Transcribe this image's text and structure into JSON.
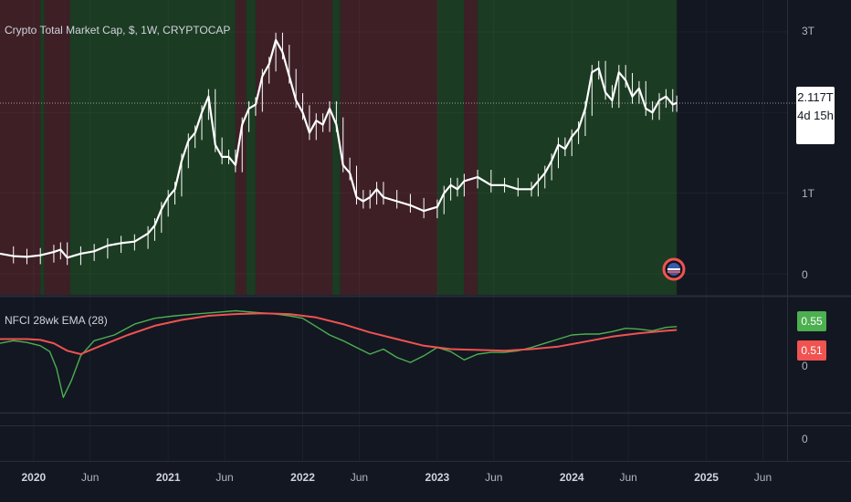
{
  "header": {
    "symbol_title": "Crypto Total Market Cap, $, 1W, CRYPTOCAP",
    "indicator_title": "NFCI 28wk EMA (28)"
  },
  "price_badge": {
    "value": "2.117T",
    "countdown": "4d 15h"
  },
  "indicator_badges": {
    "nfci": "0.55",
    "ema": "0.51"
  },
  "colors": {
    "background": "#131722",
    "green_regime": "#1b3b22",
    "red_regime": "#3e1f26",
    "nfci_line": "#4caf50",
    "ema_line": "#f05350",
    "candles": "#ffffff"
  },
  "chart_data": [
    {
      "type": "line",
      "title": "Crypto Total Market Cap, $, 1W, CRYPTOCAP",
      "ylabel": "",
      "ytick_labels": [
        "3T",
        "1T",
        "0"
      ],
      "yticks": [
        3,
        1,
        0
      ],
      "ylim": [
        -0.3,
        3.3
      ],
      "unit": "T",
      "last_value": 2.117,
      "x": [
        2019.75,
        2019.85,
        2019.95,
        2020.05,
        2020.15,
        2020.2,
        2020.25,
        2020.35,
        2020.45,
        2020.55,
        2020.65,
        2020.75,
        2020.85,
        2020.9,
        2020.95,
        2021.0,
        2021.05,
        2021.1,
        2021.15,
        2021.2,
        2021.25,
        2021.3,
        2021.35,
        2021.4,
        2021.45,
        2021.5,
        2021.55,
        2021.6,
        2021.65,
        2021.7,
        2021.75,
        2021.8,
        2021.85,
        2021.9,
        2021.95,
        2022.0,
        2022.05,
        2022.1,
        2022.15,
        2022.2,
        2022.25,
        2022.3,
        2022.35,
        2022.4,
        2022.45,
        2022.5,
        2022.55,
        2022.6,
        2022.7,
        2022.8,
        2022.9,
        2023.0,
        2023.05,
        2023.1,
        2023.15,
        2023.2,
        2023.3,
        2023.4,
        2023.5,
        2023.6,
        2023.7,
        2023.75,
        2023.8,
        2023.85,
        2023.9,
        2023.95,
        2024.0,
        2024.05,
        2024.1,
        2024.15,
        2024.2,
        2024.25,
        2024.3,
        2024.35,
        2024.4,
        2024.45,
        2024.5,
        2024.55,
        2024.6,
        2024.65,
        2024.7,
        2024.75,
        2024.78
      ],
      "values": [
        0.25,
        0.22,
        0.21,
        0.23,
        0.27,
        0.3,
        0.2,
        0.25,
        0.28,
        0.35,
        0.38,
        0.4,
        0.5,
        0.6,
        0.8,
        0.95,
        1.05,
        1.4,
        1.65,
        1.75,
        2.0,
        2.2,
        1.6,
        1.45,
        1.45,
        1.35,
        1.85,
        2.05,
        2.1,
        2.45,
        2.6,
        2.9,
        2.75,
        2.45,
        2.15,
        2.0,
        1.75,
        1.9,
        1.85,
        2.05,
        1.85,
        1.35,
        1.25,
        0.95,
        0.9,
        0.95,
        1.05,
        0.95,
        0.9,
        0.85,
        0.78,
        0.83,
        1.0,
        1.1,
        1.05,
        1.15,
        1.2,
        1.1,
        1.1,
        1.05,
        1.05,
        1.15,
        1.25,
        1.4,
        1.6,
        1.55,
        1.7,
        1.8,
        2.05,
        2.5,
        2.55,
        2.25,
        2.15,
        2.5,
        2.4,
        2.2,
        2.3,
        2.05,
        2.0,
        2.15,
        2.2,
        2.1,
        2.12
      ]
    },
    {
      "type": "line",
      "title": "NFCI 28wk EMA (28)",
      "ytick_labels": [
        "0",
        "0"
      ],
      "series": [
        {
          "name": "NFCI",
          "color": "#4caf50",
          "last_value": 0.55,
          "x": [
            2019.75,
            2019.85,
            2019.95,
            2020.05,
            2020.12,
            2020.17,
            2020.22,
            2020.28,
            2020.35,
            2020.45,
            2020.6,
            2020.75,
            2020.9,
            2021.05,
            2021.2,
            2021.35,
            2021.5,
            2021.65,
            2021.8,
            2021.9,
            2022.0,
            2022.1,
            2022.2,
            2022.3,
            2022.4,
            2022.5,
            2022.6,
            2022.7,
            2022.8,
            2022.9,
            2023.0,
            2023.1,
            2023.2,
            2023.3,
            2023.4,
            2023.5,
            2023.6,
            2023.7,
            2023.8,
            2023.9,
            2024.0,
            2024.1,
            2024.2,
            2024.3,
            2024.4,
            2024.5,
            2024.6,
            2024.7,
            2024.78
          ],
          "values": [
            0.35,
            0.38,
            0.36,
            0.32,
            0.25,
            0.05,
            -0.3,
            -0.1,
            0.2,
            0.38,
            0.45,
            0.58,
            0.65,
            0.68,
            0.7,
            0.72,
            0.74,
            0.72,
            0.7,
            0.68,
            0.65,
            0.55,
            0.45,
            0.38,
            0.3,
            0.22,
            0.28,
            0.18,
            0.12,
            0.2,
            0.3,
            0.25,
            0.15,
            0.22,
            0.24,
            0.24,
            0.26,
            0.3,
            0.35,
            0.4,
            0.45,
            0.46,
            0.46,
            0.49,
            0.53,
            0.52,
            0.5,
            0.54,
            0.55
          ]
        },
        {
          "name": "EMA",
          "color": "#f05350",
          "last_value": 0.51,
          "x": [
            2019.75,
            2019.85,
            2019.95,
            2020.05,
            2020.15,
            2020.25,
            2020.35,
            2020.5,
            2020.7,
            2020.9,
            2021.1,
            2021.3,
            2021.5,
            2021.7,
            2021.9,
            2022.1,
            2022.3,
            2022.5,
            2022.7,
            2022.9,
            2023.1,
            2023.3,
            2023.5,
            2023.7,
            2023.9,
            2024.1,
            2024.3,
            2024.5,
            2024.7,
            2024.78
          ],
          "values": [
            0.4,
            0.4,
            0.4,
            0.39,
            0.35,
            0.26,
            0.22,
            0.32,
            0.45,
            0.56,
            0.63,
            0.68,
            0.7,
            0.71,
            0.7,
            0.66,
            0.58,
            0.48,
            0.4,
            0.32,
            0.28,
            0.27,
            0.26,
            0.28,
            0.31,
            0.37,
            0.43,
            0.47,
            0.5,
            0.51
          ]
        }
      ]
    }
  ],
  "regimes": [
    {
      "start": 2019.75,
      "end": 2020.05,
      "state": "red"
    },
    {
      "start": 2020.05,
      "end": 2020.08,
      "state": "green"
    },
    {
      "start": 2020.08,
      "end": 2020.27,
      "state": "red"
    },
    {
      "start": 2020.27,
      "end": 2021.5,
      "state": "green"
    },
    {
      "start": 2021.5,
      "end": 2021.58,
      "state": "red"
    },
    {
      "start": 2021.58,
      "end": 2021.65,
      "state": "green"
    },
    {
      "start": 2021.65,
      "end": 2022.22,
      "state": "red"
    },
    {
      "start": 2022.22,
      "end": 2022.28,
      "state": "green"
    },
    {
      "start": 2022.28,
      "end": 2023.0,
      "state": "red"
    },
    {
      "start": 2023.0,
      "end": 2023.2,
      "state": "green"
    },
    {
      "start": 2023.2,
      "end": 2023.3,
      "state": "red"
    },
    {
      "start": 2023.3,
      "end": 2024.78,
      "state": "green"
    }
  ],
  "x_axis": {
    "labels": [
      {
        "text": "2020",
        "value": 2020.0,
        "bold": true
      },
      {
        "text": "Jun",
        "value": 2020.42,
        "bold": false
      },
      {
        "text": "2021",
        "value": 2021.0,
        "bold": true
      },
      {
        "text": "Jun",
        "value": 2021.42,
        "bold": false
      },
      {
        "text": "2022",
        "value": 2022.0,
        "bold": true
      },
      {
        "text": "Jun",
        "value": 2022.42,
        "bold": false
      },
      {
        "text": "2023",
        "value": 2023.0,
        "bold": true
      },
      {
        "text": "Jun",
        "value": 2023.42,
        "bold": false
      },
      {
        "text": "2024",
        "value": 2024.0,
        "bold": true
      },
      {
        "text": "Jun",
        "value": 2024.42,
        "bold": false
      },
      {
        "text": "2025",
        "value": 2025.0,
        "bold": true
      },
      {
        "text": "Jun",
        "value": 2025.42,
        "bold": false
      }
    ]
  }
}
